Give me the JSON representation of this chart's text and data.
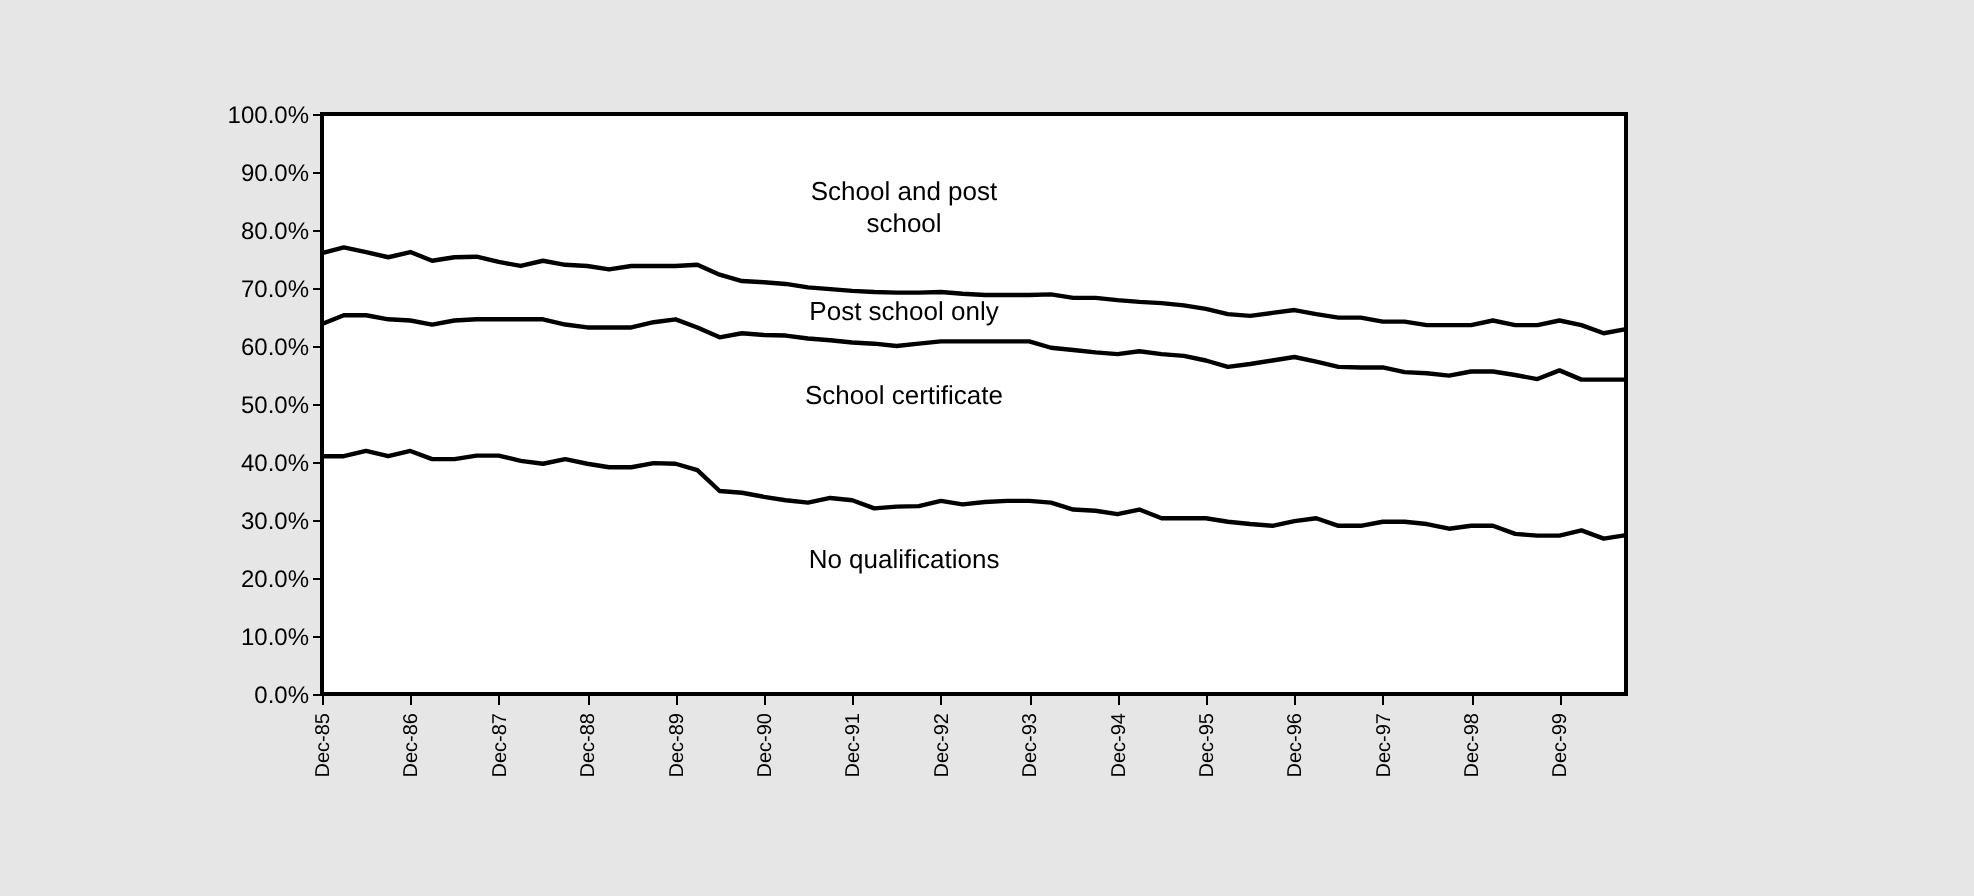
{
  "chart_data": {
    "type": "line",
    "x": [
      "1985-12",
      "1986-03",
      "1986-06",
      "1986-09",
      "1986-12",
      "1987-03",
      "1987-06",
      "1987-09",
      "1987-12",
      "1988-03",
      "1988-06",
      "1988-09",
      "1988-12",
      "1989-03",
      "1989-06",
      "1989-09",
      "1989-12",
      "1990-03",
      "1990-06",
      "1990-09",
      "1990-12",
      "1991-03",
      "1991-06",
      "1991-09",
      "1991-12",
      "1992-03",
      "1992-06",
      "1992-09",
      "1992-12",
      "1993-03",
      "1993-06",
      "1993-09",
      "1993-12",
      "1994-03",
      "1994-06",
      "1994-09",
      "1994-12",
      "1995-03",
      "1995-06",
      "1995-09",
      "1995-12",
      "1996-03",
      "1996-06",
      "1996-09",
      "1996-12",
      "1997-03",
      "1997-06",
      "1997-09",
      "1997-12",
      "1998-03",
      "1998-06",
      "1998-09",
      "1998-12",
      "1999-03",
      "1999-06",
      "1999-09",
      "1999-12",
      "2000-03",
      "2000-06",
      "2000-09"
    ],
    "series": [
      {
        "color": "#000000",
        "values": [
          76.0,
          77.0,
          76.2,
          75.3,
          76.2,
          74.7,
          75.3,
          75.4,
          74.5,
          73.8,
          74.7,
          74.0,
          73.8,
          73.2,
          73.8,
          73.8,
          73.8,
          74.0,
          72.3,
          71.2,
          71.0,
          70.7,
          70.1,
          69.8,
          69.5,
          69.3,
          69.2,
          69.2,
          69.3,
          69.0,
          68.8,
          68.8,
          68.8,
          68.9,
          68.3,
          68.3,
          67.9,
          67.6,
          67.4,
          67.0,
          66.4,
          65.5,
          65.2,
          65.7,
          66.2,
          65.5,
          64.9,
          64.9,
          64.2,
          64.2,
          63.6,
          63.6,
          63.6,
          64.4,
          63.6,
          63.6,
          64.4,
          63.6,
          62.2,
          62.9
        ]
      },
      {
        "color": "#000000",
        "values": [
          63.8,
          65.3,
          65.3,
          64.6,
          64.4,
          63.7,
          64.4,
          64.6,
          64.6,
          64.6,
          64.6,
          63.7,
          63.2,
          63.2,
          63.2,
          64.1,
          64.6,
          63.2,
          61.5,
          62.2,
          61.9,
          61.8,
          61.3,
          61.0,
          60.6,
          60.4,
          60.0,
          60.4,
          60.8,
          60.8,
          60.8,
          60.8,
          60.8,
          59.7,
          59.3,
          58.9,
          58.6,
          59.1,
          58.6,
          58.3,
          57.5,
          56.4,
          56.9,
          57.5,
          58.1,
          57.3,
          56.4,
          56.3,
          56.3,
          55.5,
          55.3,
          54.9,
          55.6,
          55.6,
          55.0,
          54.3,
          55.8,
          54.2,
          54.2,
          54.2
        ]
      },
      {
        "color": "#000000",
        "values": [
          41.0,
          41.0,
          41.9,
          41.0,
          41.9,
          40.5,
          40.5,
          41.1,
          41.1,
          40.2,
          39.7,
          40.5,
          39.7,
          39.1,
          39.1,
          39.8,
          39.7,
          38.6,
          35.0,
          34.7,
          34.0,
          33.4,
          33.0,
          33.8,
          33.4,
          32.0,
          32.3,
          32.4,
          33.3,
          32.7,
          33.1,
          33.3,
          33.3,
          33.0,
          31.8,
          31.6,
          31.0,
          31.8,
          30.3,
          30.3,
          30.3,
          29.7,
          29.3,
          29.0,
          29.8,
          30.3,
          29.0,
          29.0,
          29.7,
          29.7,
          29.3,
          28.5,
          29.0,
          29.0,
          27.6,
          27.3,
          27.3,
          28.2,
          26.8,
          27.4
        ]
      }
    ],
    "annotations": [
      "School and post\nschool",
      "Post school only",
      "School certificate",
      "No qualifications"
    ],
    "xlim": [
      "1985-12",
      "2000-09"
    ],
    "xticks": [
      {
        "value": "1985-12",
        "label": "Dec-85"
      },
      {
        "value": "1986-12",
        "label": "Dec-86"
      },
      {
        "value": "1987-12",
        "label": "Dec-87"
      },
      {
        "value": "1988-12",
        "label": "Dec-88"
      },
      {
        "value": "1989-12",
        "label": "Dec-89"
      },
      {
        "value": "1990-12",
        "label": "Dec-90"
      },
      {
        "value": "1991-12",
        "label": "Dec-91"
      },
      {
        "value": "1992-12",
        "label": "Dec-92"
      },
      {
        "value": "1993-12",
        "label": "Dec-93"
      },
      {
        "value": "1994-12",
        "label": "Dec-94"
      },
      {
        "value": "1995-12",
        "label": "Dec-95"
      },
      {
        "value": "1996-12",
        "label": "Dec-96"
      },
      {
        "value": "1997-12",
        "label": "Dec-97"
      },
      {
        "value": "1998-12",
        "label": "Dec-98"
      },
      {
        "value": "1999-12",
        "label": "Dec-99"
      }
    ],
    "ylim": [
      0,
      100
    ],
    "yticks": [
      {
        "value": 0,
        "label": "0.0%"
      },
      {
        "value": 10,
        "label": "10.0%"
      },
      {
        "value": 20,
        "label": "20.0%"
      },
      {
        "value": 30,
        "label": "30.0%"
      },
      {
        "value": 40,
        "label": "40.0%"
      },
      {
        "value": 50,
        "label": "50.0%"
      },
      {
        "value": 60,
        "label": "60.0%"
      },
      {
        "value": 70,
        "label": "70.0%"
      },
      {
        "value": 80,
        "label": "80.0%"
      },
      {
        "value": 90,
        "label": "90.0%"
      },
      {
        "value": 100,
        "label": "100.0%"
      }
    ],
    "grid": false,
    "legend": false,
    "marker": "none",
    "line_style": "solid"
  }
}
